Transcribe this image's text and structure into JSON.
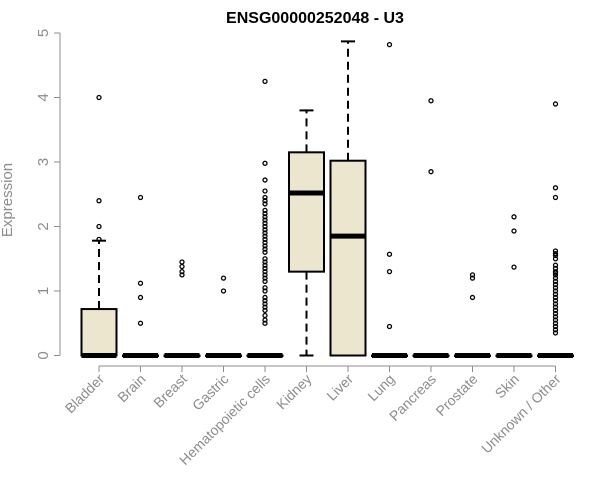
{
  "chart_data": {
    "type": "boxplot",
    "title": "ENSG00000252048 - U3",
    "ylabel": "Expression",
    "xlabel": "",
    "ylim": [
      0,
      5
    ],
    "yticks": [
      "0",
      "1",
      "2",
      "3",
      "4",
      "5"
    ],
    "grid": false,
    "colors": {
      "box_fill": "#ede6cf",
      "stroke": "#000000",
      "axis_text": "#8c8c8c"
    },
    "categories": [
      {
        "label": "Bladder",
        "q1": 0,
        "median": 0,
        "q3": 0.72,
        "whisker_low": 0,
        "whisker_high": 1.78,
        "outliers": [
          4.0,
          2.4,
          2.0,
          1.8
        ]
      },
      {
        "label": "Brain",
        "q1": 0,
        "median": 0,
        "q3": 0,
        "whisker_low": 0,
        "whisker_high": 0,
        "outliers": [
          2.45,
          1.12,
          0.9,
          0.5
        ]
      },
      {
        "label": "Breast",
        "q1": 0,
        "median": 0,
        "q3": 0,
        "whisker_low": 0,
        "whisker_high": 0,
        "outliers": [
          1.45,
          1.38,
          1.3,
          1.25
        ]
      },
      {
        "label": "Gastric",
        "q1": 0,
        "median": 0,
        "q3": 0,
        "whisker_low": 0,
        "whisker_high": 0,
        "outliers": [
          1.2,
          1.0
        ]
      },
      {
        "label": "Hematopoietic cells",
        "q1": 0,
        "median": 0,
        "q3": 0,
        "whisker_low": 0,
        "whisker_high": 0,
        "outliers": [
          4.25,
          2.98,
          2.72,
          2.55,
          2.45,
          2.4,
          2.35,
          2.25,
          2.2,
          2.15,
          2.1,
          2.05,
          2.0,
          1.95,
          1.9,
          1.85,
          1.8,
          1.75,
          1.7,
          1.65,
          1.6,
          1.5,
          1.45,
          1.4,
          1.35,
          1.3,
          1.25,
          1.2,
          1.15,
          1.05,
          1.0,
          0.9,
          0.85,
          0.8,
          0.75,
          0.7,
          0.62,
          0.55,
          0.5
        ]
      },
      {
        "label": "Kidney",
        "q1": 1.3,
        "median": 2.52,
        "q3": 3.15,
        "whisker_low": 0,
        "whisker_high": 3.8,
        "outliers": []
      },
      {
        "label": "Liver",
        "q1": 0,
        "median": 1.85,
        "q3": 3.02,
        "whisker_low": 0,
        "whisker_high": 4.87,
        "outliers": []
      },
      {
        "label": "Lung",
        "q1": 0,
        "median": 0,
        "q3": 0,
        "whisker_low": 0,
        "whisker_high": 0,
        "outliers": [
          4.82,
          1.57,
          1.3,
          0.45
        ]
      },
      {
        "label": "Pancreas",
        "q1": 0,
        "median": 0,
        "q3": 0,
        "whisker_low": 0,
        "whisker_high": 0,
        "outliers": [
          3.95,
          2.85
        ]
      },
      {
        "label": "Prostate",
        "q1": 0,
        "median": 0,
        "q3": 0,
        "whisker_low": 0,
        "whisker_high": 0,
        "outliers": [
          1.25,
          1.2,
          0.9
        ]
      },
      {
        "label": "Skin",
        "q1": 0,
        "median": 0,
        "q3": 0,
        "whisker_low": 0,
        "whisker_high": 0,
        "outliers": [
          2.15,
          1.93,
          1.37
        ]
      },
      {
        "label": "Unknown / Other",
        "q1": 0,
        "median": 0,
        "q3": 0,
        "whisker_low": 0,
        "whisker_high": 0,
        "outliers": [
          3.9,
          2.6,
          2.45,
          1.62,
          1.58,
          1.55,
          1.5,
          1.4,
          1.35,
          1.3,
          1.28,
          1.25,
          1.2,
          1.15,
          1.1,
          1.05,
          1.0,
          0.95,
          0.9,
          0.85,
          0.8,
          0.75,
          0.7,
          0.65,
          0.6,
          0.55,
          0.5,
          0.45,
          0.4,
          0.35
        ]
      }
    ]
  }
}
